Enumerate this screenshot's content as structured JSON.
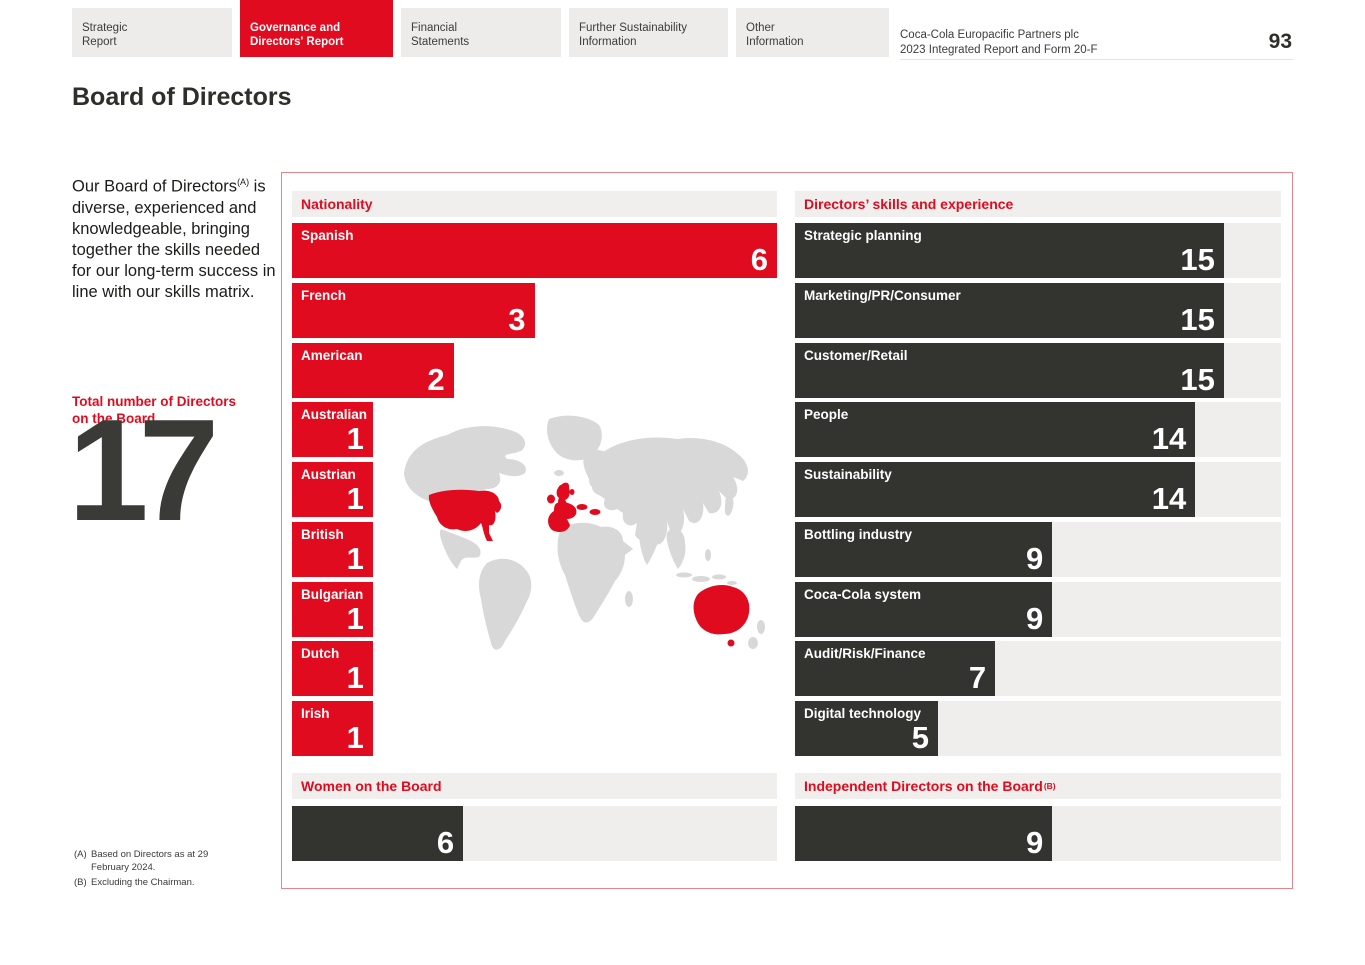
{
  "header": {
    "tabs": [
      {
        "lines": [
          "Strategic",
          "Report"
        ],
        "active": false
      },
      {
        "lines": [
          "Governance and",
          "Directors' Report"
        ],
        "active": true
      },
      {
        "lines": [
          "Financial",
          "Statements"
        ],
        "active": false
      },
      {
        "lines": [
          "Further Sustainability",
          "Information"
        ],
        "active": false
      },
      {
        "lines": [
          "Other",
          "Information"
        ],
        "active": false
      }
    ],
    "brand_line1": "Coca-Cola Europacific Partners plc",
    "brand_line2": "2023 Integrated Report and Form 20-F",
    "page_number": "93"
  },
  "page_title": "Board of Directors",
  "sidebar": {
    "intro_before": "Our Board of Directors",
    "intro_sup": "(A)",
    "intro_after": " is diverse, experienced and knowledgeable, bringing together the skills needed for our long-term success in line with our skills matrix.",
    "total_label": "Total number of Directors on the Board",
    "total_value": "17",
    "footnotes": [
      {
        "marker": "(A)",
        "text": "Based on Directors as at 29 February 2024."
      },
      {
        "marker": "(B)",
        "text": "Excluding the Chairman."
      }
    ]
  },
  "chart_data": [
    {
      "type": "bar",
      "title": "Nationality",
      "categories": [
        "Spanish",
        "French",
        "American",
        "Australian",
        "Austrian",
        "British",
        "Bulgarian",
        "Dutch",
        "Irish"
      ],
      "values": [
        6,
        3,
        2,
        1,
        1,
        1,
        1,
        1,
        1
      ],
      "max_scale": 6,
      "bar_style": "red",
      "show_track": false,
      "legend_position": "none",
      "grid": false
    },
    {
      "type": "bar",
      "title": "Directors’ skills and experience",
      "categories": [
        "Strategic planning",
        "Marketing/PR/Consumer",
        "Customer/Retail",
        "People",
        "Sustainability",
        "Bottling industry",
        "Coca-Cola system",
        "Audit/Risk/Finance",
        "Digital technology"
      ],
      "values": [
        15,
        15,
        15,
        14,
        14,
        9,
        9,
        7,
        5
      ],
      "max_scale": 17,
      "bar_style": "dark",
      "show_track": true,
      "legend_position": "none",
      "grid": false
    },
    {
      "type": "bar",
      "title": "Women on the Board",
      "categories": [
        ""
      ],
      "values": [
        6
      ],
      "max_scale": 17,
      "bar_style": "dark",
      "show_track": true
    },
    {
      "type": "bar",
      "title": "Independent Directors on the Board",
      "title_sup": "(B)",
      "categories": [
        ""
      ],
      "values": [
        9
      ],
      "max_scale": 17,
      "bar_style": "dark",
      "show_track": true
    }
  ],
  "map": {
    "base_color": "#d8d8d8",
    "highlight_color": "#e00b1e",
    "highlighted_countries": [
      "United States",
      "Ireland",
      "United Kingdom",
      "Netherlands",
      "France",
      "Spain",
      "Austria",
      "Bulgaria",
      "Australia"
    ]
  },
  "colors": {
    "brand_red": "#e00b1e",
    "dark_bar": "#33332f",
    "track_gray": "#efeeec",
    "tab_gray": "#edecea",
    "map_gray": "#d8d8d8",
    "box_border": "#e5848b"
  }
}
